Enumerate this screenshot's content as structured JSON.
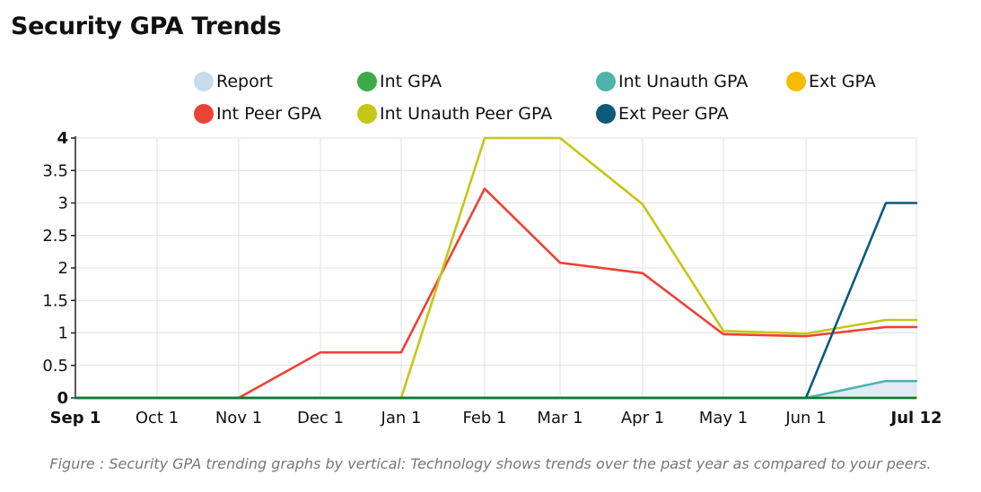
{
  "page": {
    "title": "Security GPA Trends",
    "caption": "Figure : Security GPA trending graphs by vertical: Technology shows trends over the past year as compared to your peers."
  },
  "chart_data": {
    "type": "line",
    "title": "Security GPA Trends",
    "xlabel": "",
    "ylabel": "",
    "ylim": [
      0,
      4
    ],
    "yticks": [
      "0",
      "0.5",
      "1",
      "1.5",
      "2",
      "2.5",
      "3",
      "3.5",
      "4"
    ],
    "xticks": [
      {
        "label": "Sep 1",
        "bold": true
      },
      {
        "label": "Oct 1",
        "bold": false
      },
      {
        "label": "Nov 1",
        "bold": false
      },
      {
        "label": "Dec 1",
        "bold": false
      },
      {
        "label": "Jan 1",
        "bold": false
      },
      {
        "label": "Feb 1",
        "bold": false
      },
      {
        "label": "Mar 1",
        "bold": false
      },
      {
        "label": "Apr 1",
        "bold": false
      },
      {
        "label": "May 1",
        "bold": false
      },
      {
        "label": "Jun 1",
        "bold": false
      },
      {
        "label": "Jul 12",
        "bold": true
      }
    ],
    "x": [
      "Sep 1",
      "Oct 1",
      "Nov 1",
      "Dec 1",
      "Jan 1",
      "Feb 1",
      "Mar 1",
      "Apr 1",
      "May 1",
      "Jun 1",
      "Jul 1",
      "Jul 12"
    ],
    "grid": true,
    "legend_position": "top",
    "series": [
      {
        "name": "Report",
        "color": "#c6dbef",
        "kind": "area",
        "values": [
          0,
          0,
          0,
          0,
          0,
          0,
          0,
          0,
          0,
          0,
          0.25,
          0.25
        ]
      },
      {
        "name": "Int GPA",
        "color": "#3daa49",
        "values": [
          0,
          0,
          0,
          0,
          0,
          0,
          0,
          0,
          0,
          0,
          0,
          0
        ]
      },
      {
        "name": "Int Unauth GPA",
        "color": "#4db3ac",
        "values": [
          0,
          0,
          0,
          0,
          0,
          0,
          0,
          0,
          0,
          0,
          0.26,
          0.26
        ]
      },
      {
        "name": "Ext GPA",
        "color": "#f5bd00",
        "values": [
          0,
          0,
          0,
          0,
          0,
          0,
          0,
          0,
          0,
          0,
          0,
          0
        ]
      },
      {
        "name": "Int Peer GPA",
        "color": "#ea4335",
        "values": [
          0,
          0,
          0,
          0.7,
          0.7,
          3.22,
          2.08,
          1.92,
          0.98,
          0.95,
          1.09,
          1.09
        ]
      },
      {
        "name": "Int Unauth Peer GPA",
        "color": "#c6c615",
        "values": [
          0,
          0,
          0,
          0,
          0,
          4,
          4,
          2.98,
          1.03,
          0.99,
          1.2,
          1.2
        ]
      },
      {
        "name": "Ext Peer GPA",
        "color": "#0b5a7a",
        "values": [
          0,
          0,
          0,
          0,
          0,
          0,
          0,
          0,
          0,
          0,
          3,
          3
        ]
      }
    ]
  }
}
